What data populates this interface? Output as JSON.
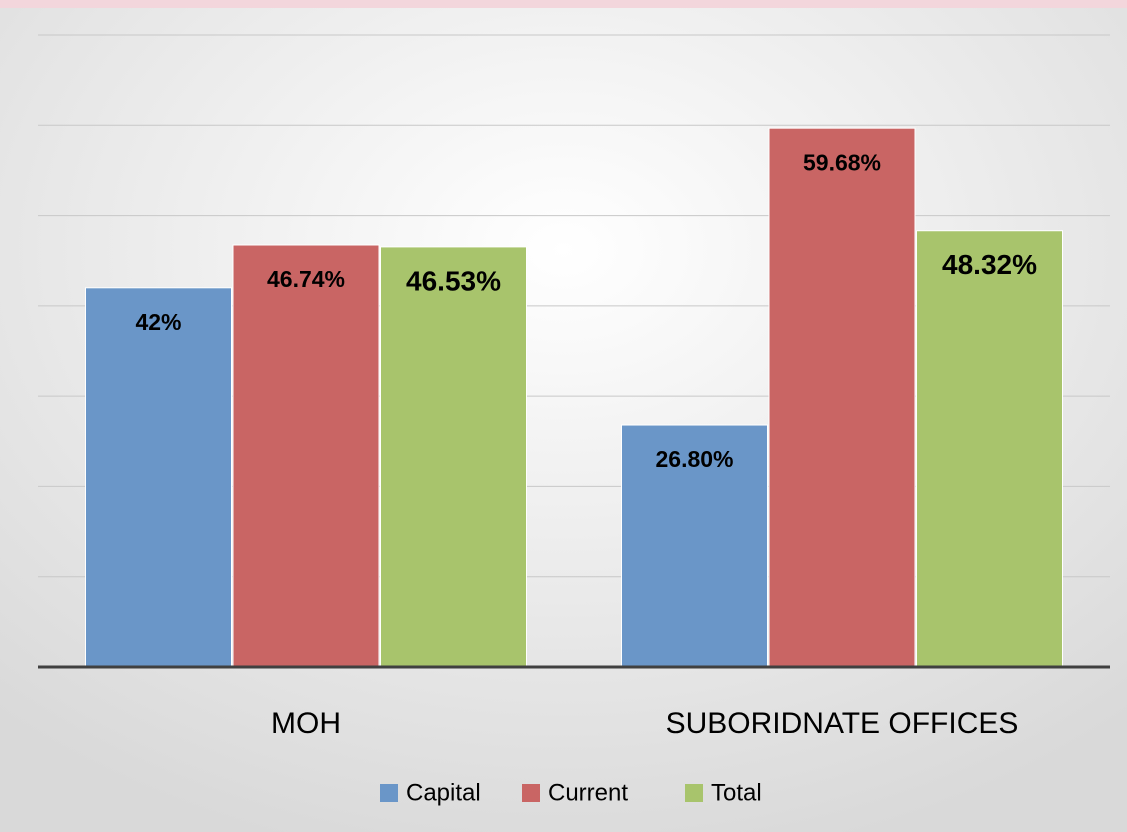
{
  "chart_data": {
    "type": "bar",
    "categories": [
      "MOH",
      "SUBORIDNATE OFFICES"
    ],
    "series": [
      {
        "name": "Capital",
        "color": "#6a96c8",
        "values": [
          42,
          26.8
        ],
        "value_labels": [
          "42%",
          "26.80%"
        ]
      },
      {
        "name": "Current",
        "color": "#c96564",
        "values": [
          46.74,
          59.68
        ],
        "value_labels": [
          "46.74%",
          "59.68%"
        ]
      },
      {
        "name": "Total",
        "color": "#a8c46c",
        "values": [
          46.53,
          48.32
        ],
        "value_labels": [
          "46.53%",
          "48.32%"
        ]
      }
    ],
    "ylim": [
      0,
      70
    ],
    "yticks": [
      10,
      20,
      30,
      40,
      50,
      60,
      70
    ],
    "grid": true,
    "legend": "bottom"
  }
}
